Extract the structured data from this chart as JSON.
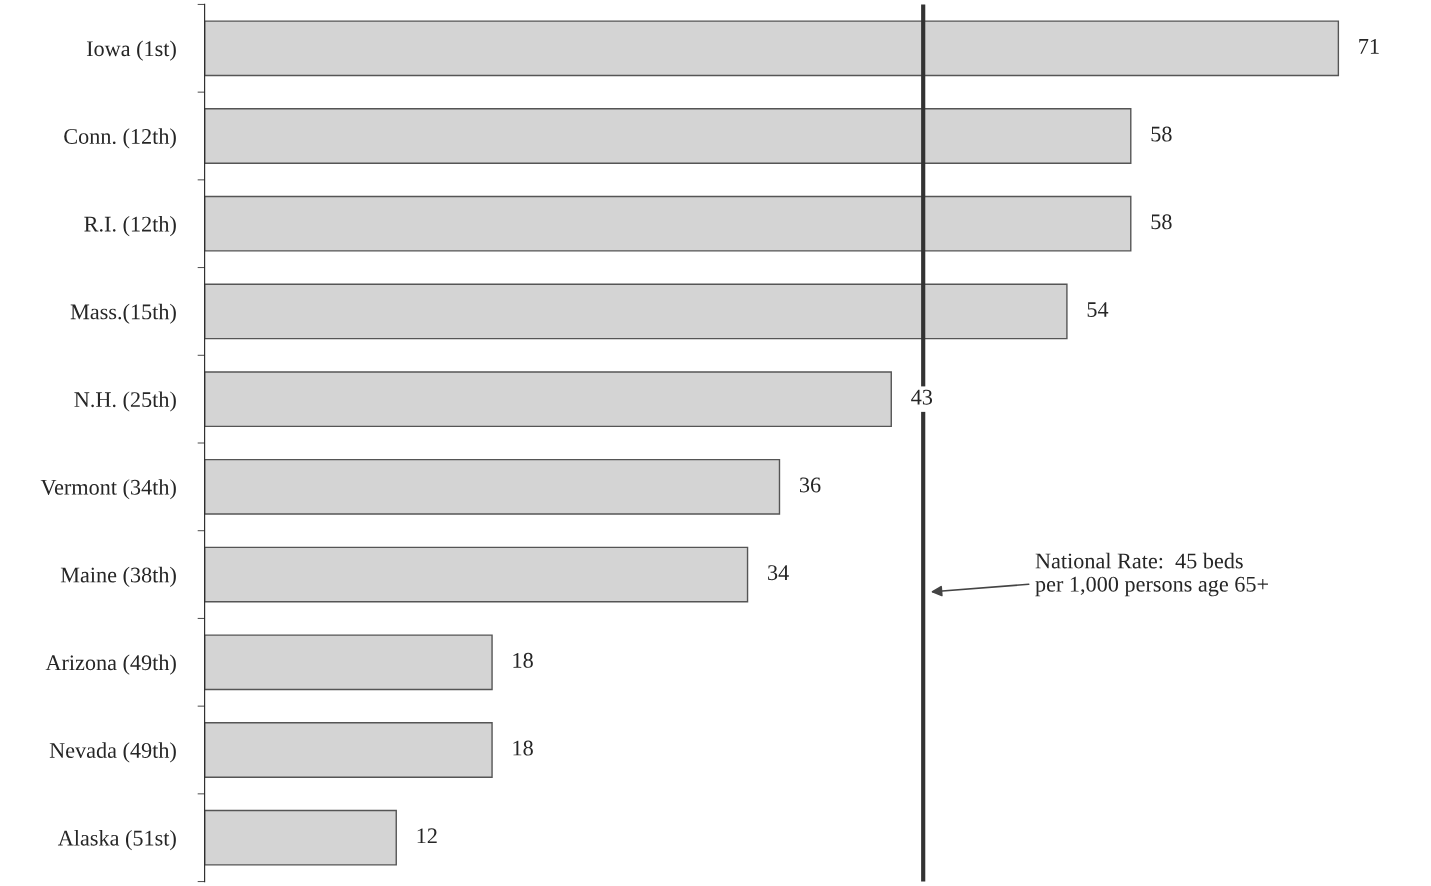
{
  "chart_data": {
    "type": "bar",
    "orientation": "horizontal",
    "categories": [
      "Iowa (1st)",
      "Conn. (12th)",
      "R.I. (12th)",
      "Mass.(15th)",
      "N.H. (25th)",
      "Vermont (34th)",
      "Maine (38th)",
      "Arizona (49th)",
      "Nevada (49th)",
      "Alaska (51st)"
    ],
    "values": [
      71,
      58,
      58,
      54,
      43,
      36,
      34,
      18,
      18,
      12
    ],
    "color": "#d4d4d4",
    "data_labels": true,
    "ref_lines": [
      {
        "axis": "x",
        "value": 45,
        "color": "#333333",
        "label": "National Rate:  45 beds\nper 1,000 persons age 65+"
      }
    ]
  }
}
